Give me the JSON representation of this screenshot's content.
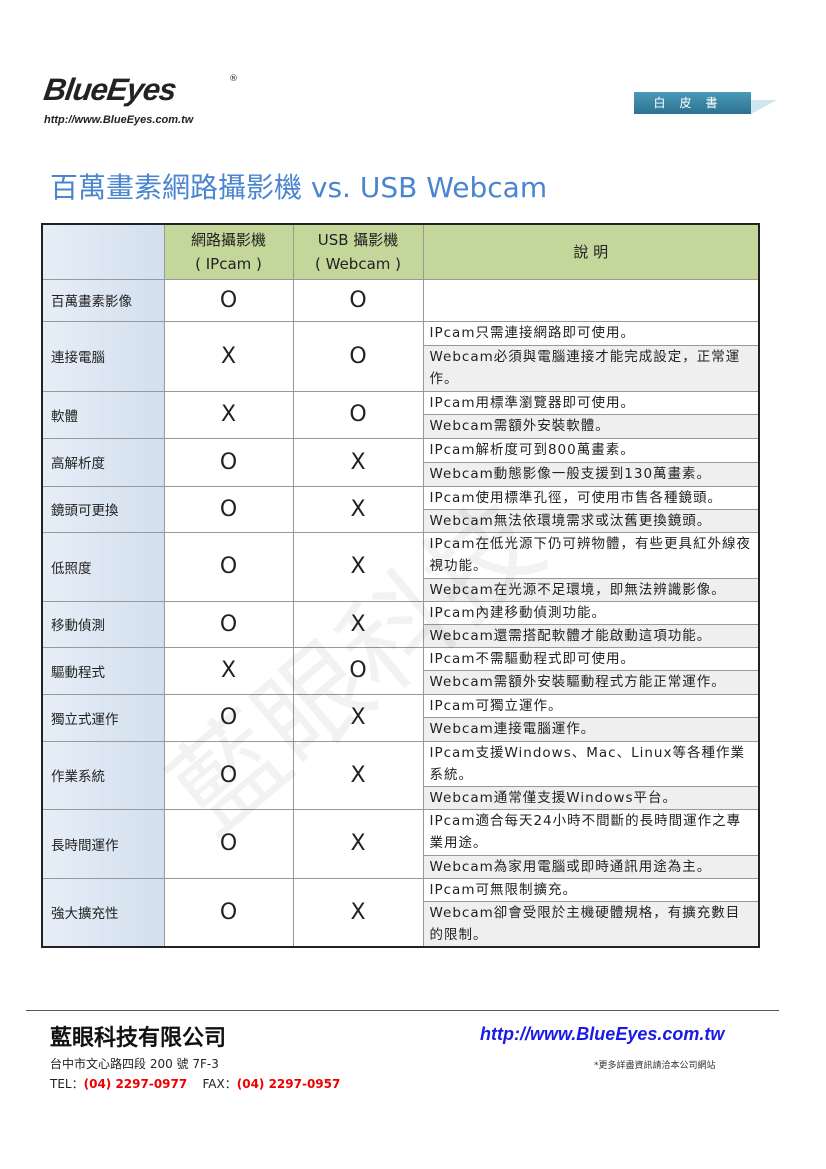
{
  "header": {
    "logo": "BlueEyes",
    "logo_url": "http://www.BlueEyes.com.tw",
    "badge": "白皮書",
    "watermark": "藍眼科技"
  },
  "title": "百萬畫素網路攝影機 vs. USB Webcam",
  "table": {
    "headers": {
      "ipcam_line1": "網路攝影機",
      "ipcam_line2": "( IPcam )",
      "webcam_line1": "USB 攝影機",
      "webcam_line2": "( Webcam )",
      "desc": "說 明"
    },
    "rows": [
      {
        "label": "百萬畫素影像",
        "ipcam": "O",
        "webcam": "O",
        "desc": [
          ""
        ]
      },
      {
        "label": "連接電腦",
        "ipcam": "X",
        "webcam": "O",
        "desc": [
          "IPcam只需連接網路即可使用。",
          "Webcam必須與電腦連接才能完成設定，正常運作。"
        ]
      },
      {
        "label": "軟體",
        "ipcam": "X",
        "webcam": "O",
        "desc": [
          "IPcam用標準瀏覽器即可使用。",
          "Webcam需額外安裝軟體。"
        ]
      },
      {
        "label": "高解析度",
        "ipcam": "O",
        "webcam": "X",
        "desc": [
          "IPcam解析度可到800萬畫素。",
          "Webcam動態影像一般支援到130萬畫素。"
        ]
      },
      {
        "label": "鏡頭可更換",
        "ipcam": "O",
        "webcam": "X",
        "desc": [
          "IPcam使用標準孔徑，可使用市售各種鏡頭。",
          "Webcam無法依環境需求或汰舊更換鏡頭。"
        ]
      },
      {
        "label": "低照度",
        "ipcam": "O",
        "webcam": "X",
        "desc": [
          "IPcam在低光源下仍可辨物體，有些更具紅外線夜視功能。",
          "Webcam在光源不足環境，即無法辨識影像。"
        ]
      },
      {
        "label": "移動偵測",
        "ipcam": "O",
        "webcam": "X",
        "desc": [
          "IPcam內建移動偵測功能。",
          "Webcam還需搭配軟體才能啟動這項功能。"
        ]
      },
      {
        "label": "驅動程式",
        "ipcam": "X",
        "webcam": "O",
        "desc": [
          "IPcam不需驅動程式即可使用。",
          "Webcam需額外安裝驅動程式方能正常運作。"
        ]
      },
      {
        "label": "獨立式運作",
        "ipcam": "O",
        "webcam": "X",
        "desc": [
          "IPcam可獨立運作。",
          "Webcam連接電腦運作。"
        ]
      },
      {
        "label": "作業系統",
        "ipcam": "O",
        "webcam": "X",
        "desc": [
          "IPcam支援Windows、Mac、Linux等各種作業系統。",
          "Webcam通常僅支援Windows平台。"
        ]
      },
      {
        "label": "長時間運作",
        "ipcam": "O",
        "webcam": "X",
        "desc": [
          "IPcam適合每天24小時不間斷的長時間運作之專業用途。",
          "Webcam為家用電腦或即時通訊用途為主。"
        ]
      },
      {
        "label": "強大擴充性",
        "ipcam": "O",
        "webcam": "X",
        "desc": [
          "IPcam可無限制擴充。",
          "Webcam卻會受限於主機硬體規格，有擴充數目的限制。"
        ]
      }
    ]
  },
  "footer": {
    "company": "藍眼科技有限公司",
    "url": "http://www.BlueEyes.com.tw",
    "address": "台中市文心路四段 200 號 7F-3",
    "note": "*更多詳盡資訊請洽本公司網站",
    "tel_label": "TEL：",
    "tel": "(04) 2297-0977",
    "fax_label": "FAX：",
    "fax": "(04) 2297-0957"
  }
}
